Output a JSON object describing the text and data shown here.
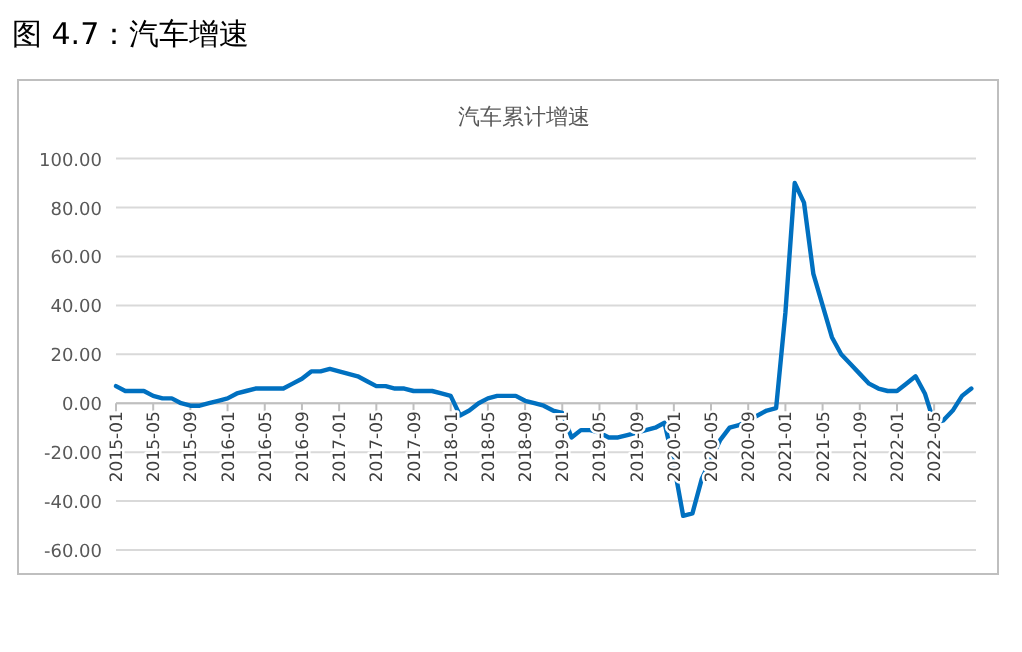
{
  "chart_data": {
    "type": "line",
    "title": "汽车累计增速",
    "annotations": [
      "图 4.7：汽车增速"
    ],
    "categories": [
      "2015-01",
      null,
      null,
      null,
      "2015-05",
      null,
      null,
      null,
      "2015-09",
      null,
      null,
      null,
      "2016-01",
      null,
      null,
      null,
      "2016-05",
      null,
      null,
      null,
      "2016-09",
      null,
      null,
      null,
      "2017-01",
      null,
      null,
      null,
      "2017-05",
      null,
      null,
      null,
      "2017-09",
      null,
      null,
      null,
      "2018-01",
      null,
      null,
      null,
      "2018-05",
      null,
      null,
      null,
      "2018-09",
      null,
      null,
      null,
      "2019-01",
      null,
      null,
      null,
      "2019-05",
      null,
      null,
      null,
      "2019-09",
      null,
      null,
      null,
      "2020-01",
      null,
      null,
      null,
      "2020-05",
      null,
      null,
      null,
      "2020-09",
      null,
      null,
      null,
      "2021-01",
      null,
      null,
      null,
      "2021-05",
      null,
      null,
      null,
      "2021-09",
      null,
      null,
      null,
      "2022-01",
      null,
      null,
      null,
      "2022-05",
      null,
      null,
      null,
      null
    ],
    "series": [
      {
        "color": "#0070c0",
        "values": [
          7,
          5,
          5,
          5,
          3,
          2,
          2,
          0,
          -1,
          -1,
          0,
          1,
          2,
          4,
          5,
          6,
          6,
          6,
          6,
          8,
          10,
          13,
          13,
          14,
          13,
          12,
          11,
          9,
          7,
          7,
          6,
          6,
          5,
          5,
          5,
          4,
          3,
          -5,
          -3,
          0,
          2,
          3,
          3,
          3,
          1,
          0,
          -1,
          -3,
          -4,
          -14,
          -11,
          -11,
          -12,
          -14,
          -14,
          -13,
          -12,
          -11,
          -10,
          -8,
          -25,
          -46,
          -45,
          -31,
          -23,
          -15,
          -10,
          -9,
          -7,
          -5,
          -3,
          -2,
          37,
          90,
          82,
          53,
          40,
          27,
          20,
          16,
          12,
          8,
          6,
          5,
          5,
          8,
          11,
          4,
          -8,
          -7,
          -3,
          3,
          6
        ]
      }
    ],
    "ylim": [
      -60,
      100
    ],
    "yticks": [
      {
        "value": -60,
        "label": "-60.00"
      },
      {
        "value": -40,
        "label": "-40.00"
      },
      {
        "value": -20,
        "label": "-20.00"
      },
      {
        "value": 0,
        "label": "0.00"
      },
      {
        "value": 20,
        "label": "20.00"
      },
      {
        "value": 40,
        "label": "40.00"
      },
      {
        "value": 60,
        "label": "60.00"
      },
      {
        "value": 80,
        "label": "80.00"
      },
      {
        "value": 100,
        "label": "100.00"
      }
    ],
    "grid": "y",
    "line_style": "solid",
    "marker": "none"
  }
}
